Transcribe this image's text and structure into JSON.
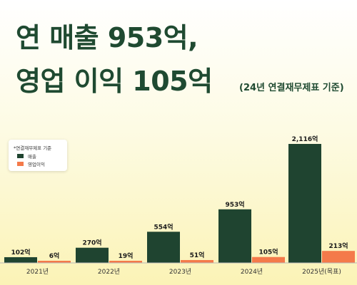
{
  "headline": {
    "line1": "연 매출 953억,",
    "line2": "영업 이익 105억",
    "basis_note": "(24년 연결재무제표 기준)"
  },
  "colors": {
    "revenue": "#1f4430",
    "operating_profit": "#f47a4a",
    "headline_text": "#1f4a31"
  },
  "chart_data": {
    "type": "bar",
    "categories": [
      "2021년",
      "2022년",
      "2023년",
      "2024년",
      "2025년(목표)"
    ],
    "series": [
      {
        "name": "매출",
        "values": [
          102,
          270,
          554,
          953,
          2116
        ],
        "labels": [
          "102억",
          "270억",
          "554억",
          "953억",
          "2,116억"
        ]
      },
      {
        "name": "영업이익",
        "values": [
          6,
          19,
          51,
          105,
          213
        ],
        "labels": [
          "6억",
          "19억",
          "51억",
          "105억",
          "213억"
        ]
      }
    ],
    "legend_note": "*연결재무제표 기준",
    "legend_position": "top-left",
    "title": "",
    "xlabel": "",
    "ylabel": "",
    "ylim": [
      0,
      2116
    ],
    "grid": false
  }
}
